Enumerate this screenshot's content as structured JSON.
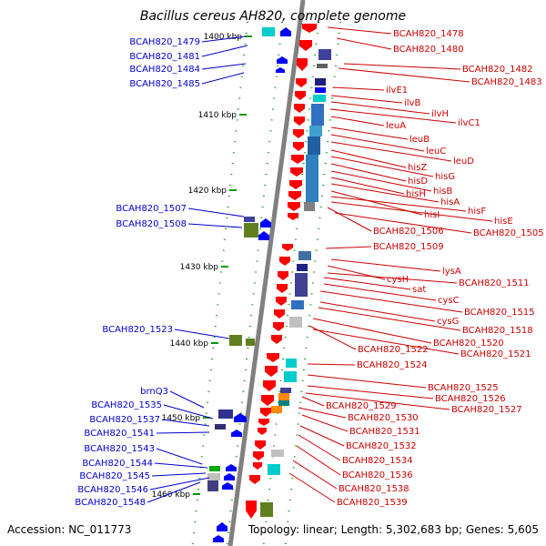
{
  "title": "Bacillus cereus AH820, complete genome",
  "accession": "Accession: NC_011773",
  "summary": "Topology: linear; Length: 5,302,683 bp; Genes: 5,605",
  "colors": {
    "forward_label": "#0000cc",
    "reverse_label": "#cc0000",
    "backbone": "#808080",
    "tick": "#009900"
  },
  "scale": [
    {
      "label": "1400 kbp"
    },
    {
      "label": "1410 kbp"
    },
    {
      "label": "1420 kbp"
    },
    {
      "label": "1430 kbp"
    },
    {
      "label": "1440 kbp"
    },
    {
      "label": "1450 kbp"
    },
    {
      "label": "1460 kbp"
    }
  ],
  "forward_genes": [
    "BCAH820_1479",
    "BCAH820_1481",
    "BCAH820_1484",
    "BCAH820_1485",
    "BCAH820_1507",
    "BCAH820_1508",
    "BCAH820_1523",
    "brnQ3",
    "BCAH820_1535",
    "BCAH820_1537",
    "BCAH820_1541",
    "BCAH820_1543",
    "BCAH820_1544",
    "BCAH820_1545",
    "BCAH820_1546",
    "BCAH820_1548"
  ],
  "reverse_genes": [
    "BCAH820_1478",
    "BCAH820_1480",
    "BCAH820_1482",
    "BCAH820_1483",
    "ilvE1",
    "ilvB",
    "ilvH",
    "ilvC1",
    "leuA",
    "leuB",
    "leuC",
    "leuD",
    "hisZ",
    "hisG",
    "hisD",
    "hisB",
    "hisH",
    "hisA",
    "hisI",
    "hisF",
    "hisE",
    "BCAH820_1506",
    "BCAH820_1505",
    "BCAH820_1509",
    "lysA",
    "cysH",
    "BCAH820_1511",
    "sat",
    "cysC",
    "BCAH820_1515",
    "cysG",
    "BCAH820_1518",
    "BCAH820_1520",
    "BCAH820_1522",
    "BCAH820_1521",
    "BCAH820_1524",
    "BCAH820_1525",
    "BCAH820_1526",
    "BCAH820_1527",
    "BCAH820_1529",
    "BCAH820_1530",
    "BCAH820_1531",
    "BCAH820_1532",
    "BCAH820_1534",
    "BCAH820_1536",
    "BCAH820_1538",
    "BCAH820_1539"
  ]
}
